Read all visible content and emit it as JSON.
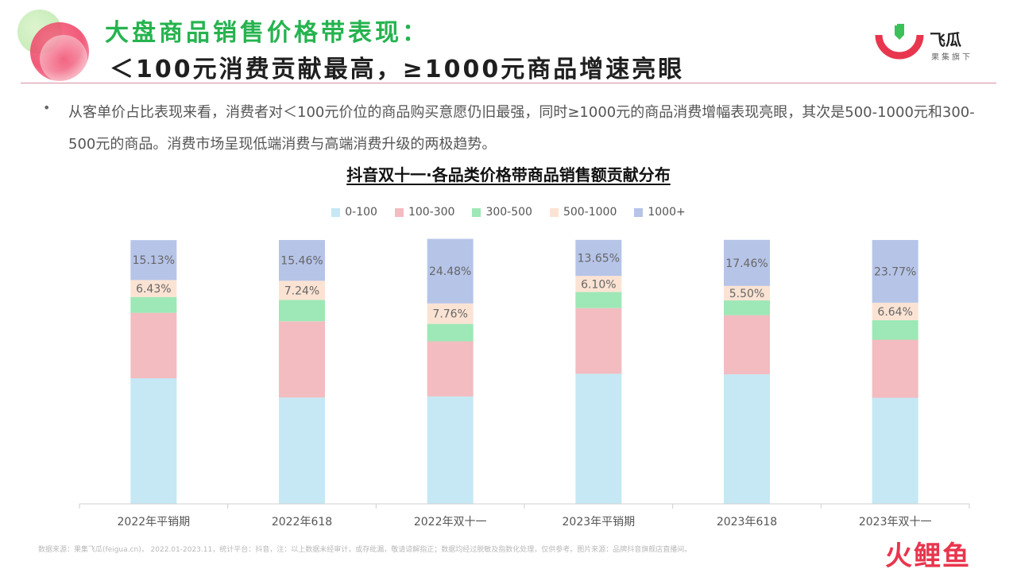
{
  "header": {
    "title_line1": "大盘商品销售价格带表现：",
    "title_line2": "＜100元消费贡献最高，≥1000元商品增速亮眼"
  },
  "logo": {
    "name": "飞瓜",
    "sub": "果集旗下"
  },
  "bullet": {
    "text": "从客单价占比表现来看，消费者对＜100元价位的商品购买意愿仍旧最强，同时≥1000元的商品消费增幅表现亮眼，其次是500-1000元和300-500元的商品。消费市场呈现低端消费与高端消费升级的两极趋势。"
  },
  "footnote": "数据来源：果集飞瓜(feigua.cn)， 2022.01-2023.11，统计平台：抖音，注：以上数据未经审计，或存纰漏，敬请谅解指正；数据均经过脱敏及指数化处理，仅供参考。图片来源：品牌抖音旗舰店直播间。",
  "watermark": "火鲤鱼",
  "colors": {
    "title_green": "#26b34f",
    "brand_red": "#e8364e"
  },
  "chart_data": {
    "type": "bar",
    "stacked": true,
    "percent": true,
    "title": "抖音双十一·各品类价格带商品销售额贡献分布",
    "legend_position": "top-center",
    "grid": false,
    "ylim": [
      0,
      100
    ],
    "categories": [
      "2022年平销期",
      "2022年618",
      "2022年双十一",
      "2023年平销期",
      "2023年618",
      "2023年双十一"
    ],
    "series": [
      {
        "name": "0-100",
        "color": "#c5e8f4",
        "values": [
          47.6,
          40.3,
          40.7,
          49.3,
          49.1,
          40.2
        ],
        "labels": [
          "",
          "",
          "",
          "",
          "",
          ""
        ]
      },
      {
        "name": "100-300",
        "color": "#f2bcc0",
        "values": [
          24.8,
          28.9,
          20.9,
          24.9,
          22.4,
          22.0
        ],
        "labels": [
          "",
          "",
          "",
          "",
          "",
          ""
        ]
      },
      {
        "name": "300-500",
        "color": "#9de8b6",
        "values": [
          6.0,
          8.1,
          6.6,
          6.1,
          5.6,
          7.4
        ],
        "labels": [
          "",
          "",
          "",
          "",
          "",
          ""
        ]
      },
      {
        "name": "500-1000",
        "color": "#fbe3d3",
        "values": [
          6.43,
          7.24,
          7.76,
          6.1,
          5.5,
          6.64
        ],
        "labels": [
          "6.43%",
          "7.24%",
          "7.76%",
          "6.10%",
          "5.50%",
          "6.64%"
        ]
      },
      {
        "name": "1000+",
        "color": "#b6c4e8",
        "values": [
          15.13,
          15.46,
          24.48,
          13.65,
          17.46,
          23.77
        ],
        "labels": [
          "15.13%",
          "15.46%",
          "24.48%",
          "13.65%",
          "17.46%",
          "23.77%"
        ]
      }
    ]
  }
}
